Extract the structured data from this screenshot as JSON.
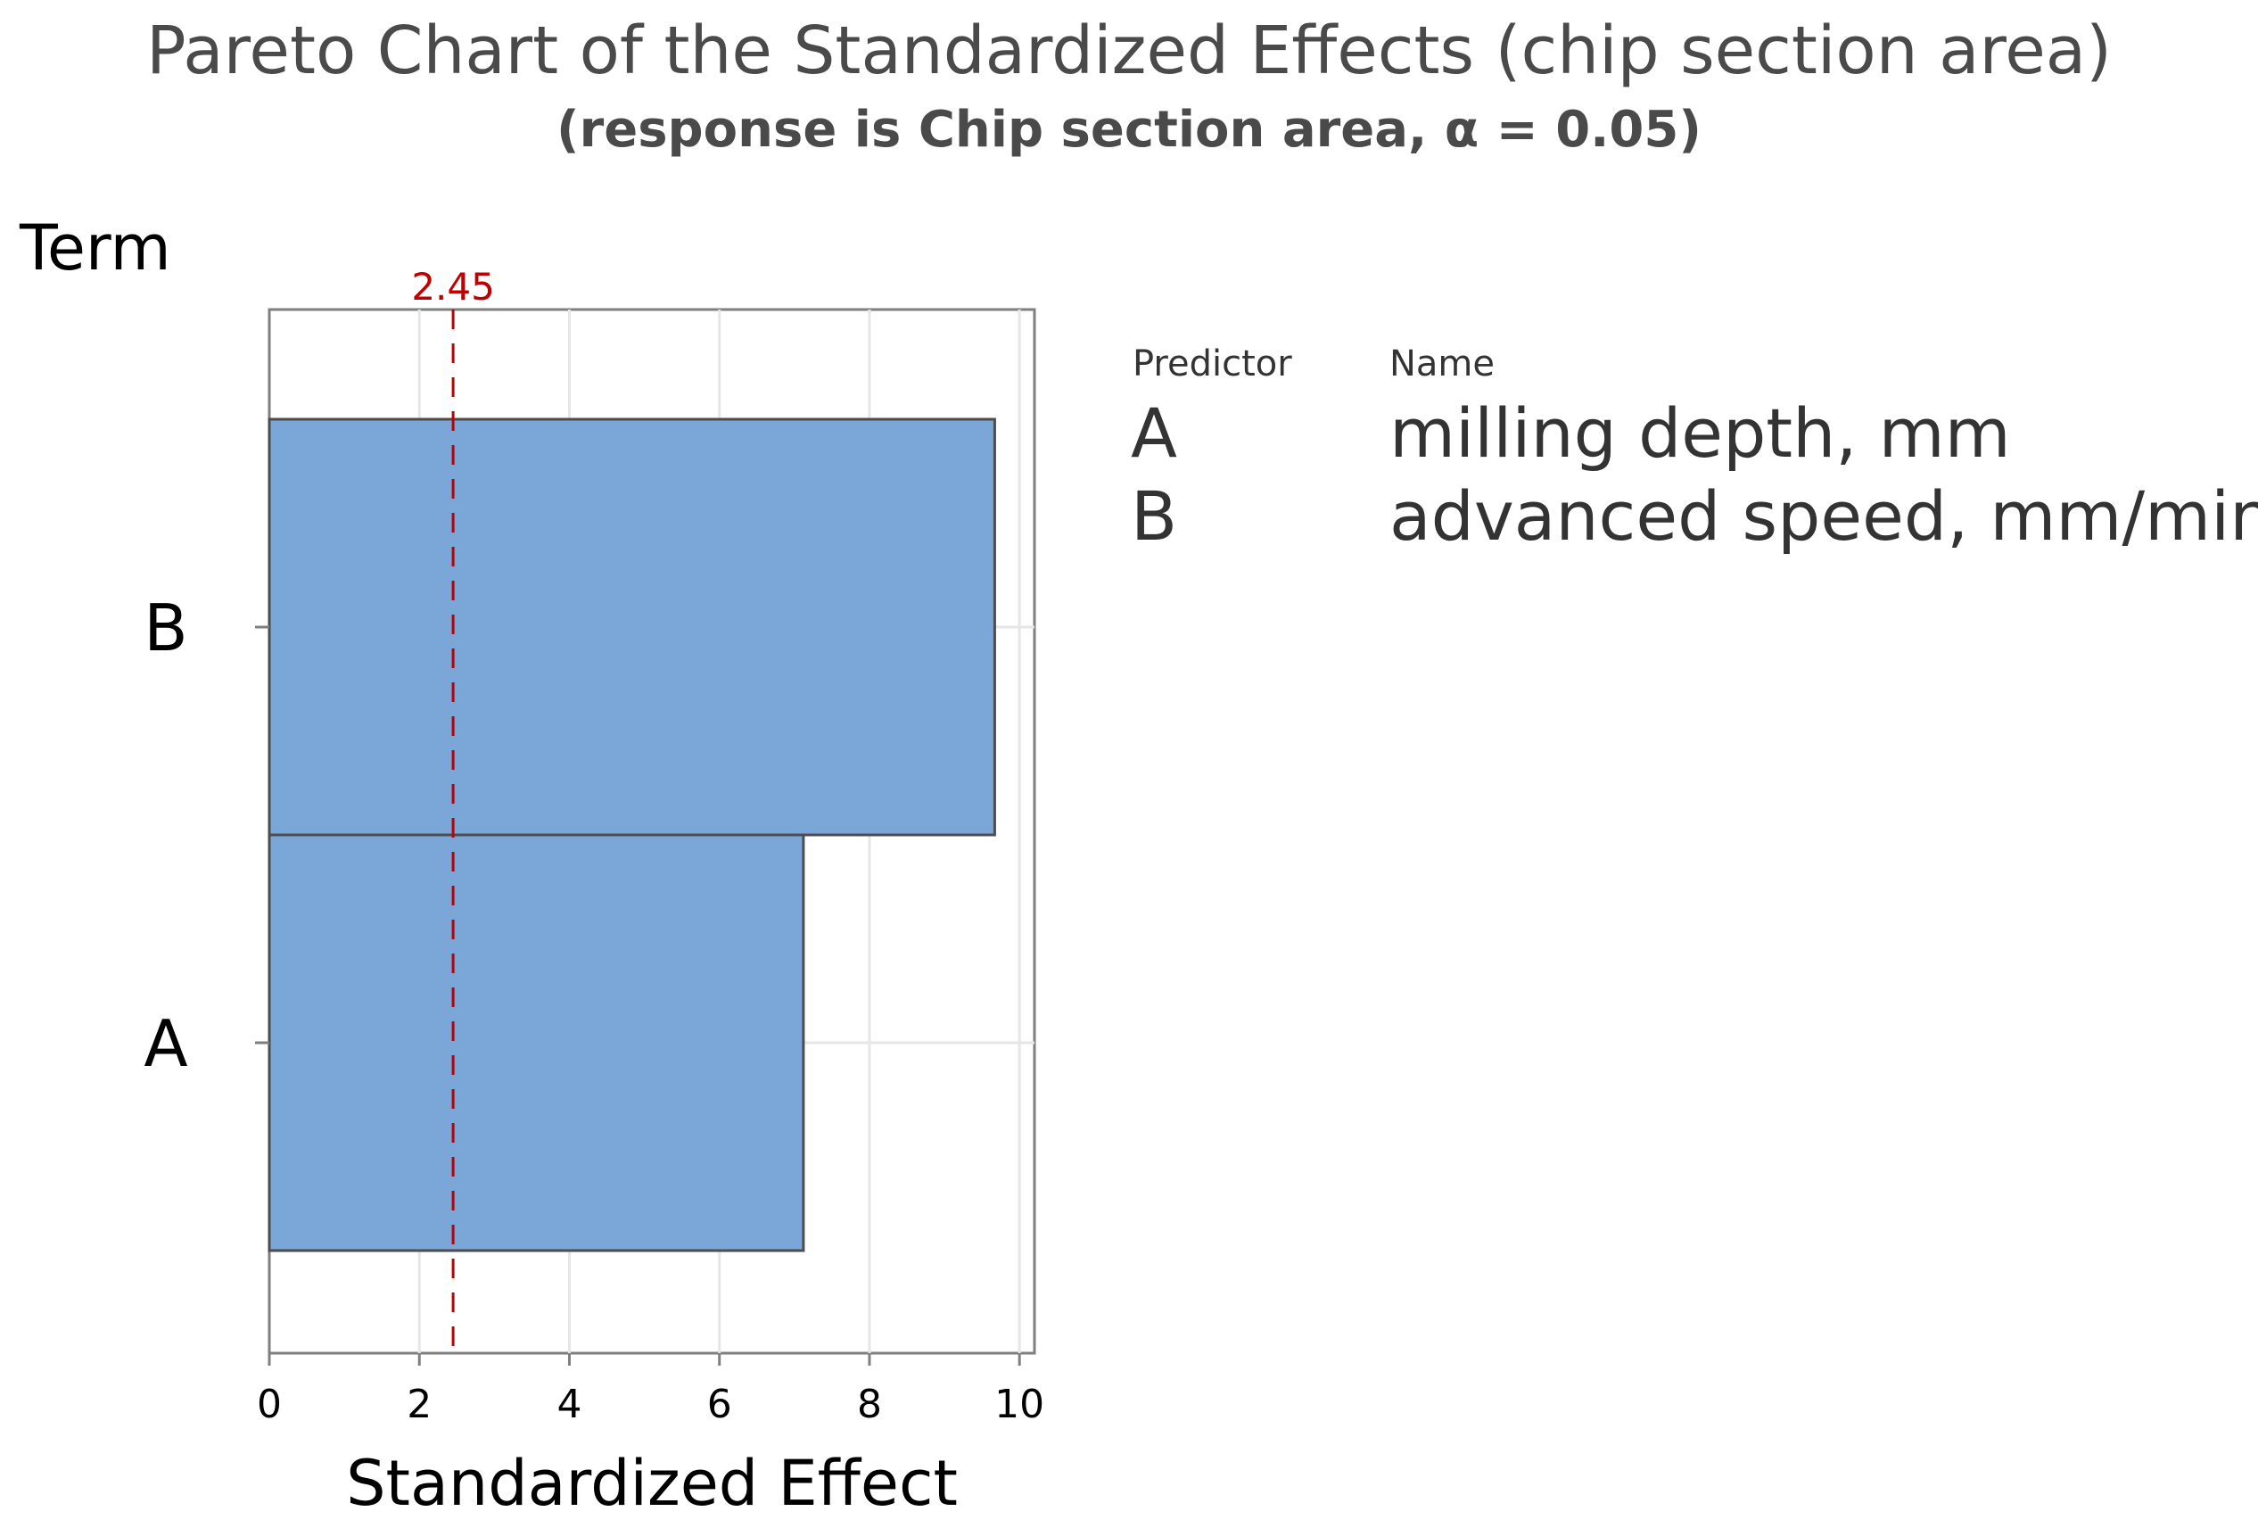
{
  "chart_data": {
    "type": "bar",
    "orientation": "horizontal",
    "title": "Pareto Chart of the Standardized Effects (chip section area)",
    "subtitle": "(response is Chip section area, α = 0.05)",
    "xlabel": "Standardized Effect",
    "ylabel": "Term",
    "categories": [
      "B",
      "A"
    ],
    "values": [
      9.67,
      7.12
    ],
    "xlim": [
      0,
      10.2
    ],
    "xticks": [
      0,
      2,
      4,
      6,
      8,
      10
    ],
    "reference_line": {
      "value": 2.45,
      "label": "2.45",
      "style": "dashed",
      "color": "#c00000"
    },
    "bar_color": "#7ba6d8",
    "grid": true,
    "legend": {
      "placement": "right",
      "headers": {
        "predictor": "Predictor",
        "name": "Name"
      },
      "rows": [
        {
          "predictor": "A",
          "name": "milling depth, mm"
        },
        {
          "predictor": "B",
          "name": "advanced speed, mm/min"
        }
      ]
    }
  }
}
